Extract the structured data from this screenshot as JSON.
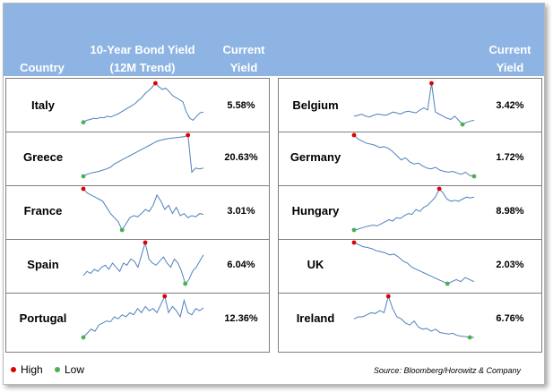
{
  "header": {
    "country": "Country",
    "yield_trend_line1": "10-Year Bond Yield",
    "yield_trend_line2": "(12M Trend)",
    "current_line1": "Current",
    "current_line2": "Yield",
    "right_current_line1": "Current",
    "right_current_line2": "Yield"
  },
  "legend": {
    "high": "High",
    "low": "Low"
  },
  "source": "Source: Bloomberg/Horowitz & Company",
  "colors": {
    "header_bg": "#8db4e2",
    "line": "#4f81bd",
    "high_marker": "#e00000",
    "low_marker": "#4caf50"
  },
  "chart_data": {
    "type": "sparkline-table",
    "columns": [
      "Country",
      "10-Year Bond Yield (12M Trend)",
      "Current Yield"
    ],
    "rows": [
      {
        "country": "Italy",
        "current_yield": "5.58%",
        "trend": [
          0.05,
          0.1,
          0.12,
          0.15,
          0.14,
          0.17,
          0.16,
          0.2,
          0.18,
          0.22,
          0.25,
          0.3,
          0.35,
          0.4,
          0.45,
          0.5,
          0.58,
          0.65,
          0.75,
          0.82,
          0.9,
          1.0,
          0.92,
          0.85,
          0.88,
          0.8,
          0.7,
          0.65,
          0.6,
          0.55,
          0.3,
          0.15,
          0.1,
          0.2,
          0.28,
          0.3
        ]
      },
      {
        "country": "Greece",
        "current_yield": "20.63%",
        "trend": [
          0.0,
          0.05,
          0.08,
          0.1,
          0.12,
          0.15,
          0.18,
          0.22,
          0.3,
          0.35,
          0.4,
          0.45,
          0.5,
          0.55,
          0.6,
          0.65,
          0.7,
          0.75,
          0.8,
          0.85,
          0.88,
          0.9,
          0.92,
          0.93,
          0.94,
          0.95,
          0.96,
          1.0,
          0.1,
          0.2,
          0.18,
          0.2
        ]
      },
      {
        "country": "France",
        "current_yield": "3.01%",
        "trend": [
          1.0,
          0.9,
          0.85,
          0.8,
          0.75,
          0.7,
          0.55,
          0.4,
          0.3,
          0.2,
          0.0,
          0.15,
          0.3,
          0.35,
          0.32,
          0.4,
          0.5,
          0.45,
          0.6,
          0.85,
          0.7,
          0.5,
          0.6,
          0.4,
          0.55,
          0.35,
          0.4,
          0.3,
          0.35,
          0.32,
          0.4,
          0.38
        ]
      },
      {
        "country": "Spain",
        "current_yield": "6.04%",
        "trend": [
          0.2,
          0.3,
          0.25,
          0.35,
          0.3,
          0.4,
          0.45,
          0.35,
          0.5,
          0.4,
          0.3,
          0.5,
          0.45,
          0.6,
          0.55,
          0.4,
          0.7,
          1.0,
          0.6,
          0.5,
          0.45,
          0.55,
          0.65,
          0.5,
          0.4,
          0.6,
          0.5,
          0.3,
          0.0,
          0.1,
          0.3,
          0.4,
          0.55,
          0.7
        ]
      },
      {
        "country": "Portugal",
        "current_yield": "12.36%",
        "trend": [
          0.0,
          0.1,
          0.2,
          0.15,
          0.3,
          0.35,
          0.4,
          0.38,
          0.5,
          0.45,
          0.55,
          0.5,
          0.6,
          0.55,
          0.7,
          0.6,
          0.75,
          0.65,
          0.7,
          0.6,
          0.8,
          1.0,
          0.6,
          0.75,
          0.65,
          0.5,
          0.9,
          0.6,
          0.55,
          0.7,
          0.65,
          0.72
        ]
      },
      {
        "country": "Belgium",
        "current_yield": "3.42%",
        "trend": [
          0.2,
          0.22,
          0.25,
          0.2,
          0.18,
          0.22,
          0.25,
          0.24,
          0.22,
          0.25,
          0.3,
          0.28,
          0.25,
          0.3,
          0.32,
          0.3,
          0.28,
          0.35,
          0.4,
          0.35,
          1.0,
          0.3,
          0.25,
          0.2,
          0.15,
          0.12,
          0.2,
          0.1,
          0.0,
          0.05,
          0.08,
          0.1
        ]
      },
      {
        "country": "Germany",
        "current_yield": "1.72%",
        "trend": [
          1.0,
          0.9,
          0.85,
          0.8,
          0.78,
          0.75,
          0.7,
          0.72,
          0.68,
          0.6,
          0.5,
          0.4,
          0.45,
          0.35,
          0.3,
          0.32,
          0.25,
          0.2,
          0.18,
          0.22,
          0.15,
          0.12,
          0.1,
          0.12,
          0.08,
          0.05,
          0.1,
          0.02,
          0.0
        ]
      },
      {
        "country": "Hungary",
        "current_yield": "8.98%",
        "trend": [
          0.0,
          0.02,
          0.05,
          0.08,
          0.1,
          0.12,
          0.1,
          0.15,
          0.2,
          0.25,
          0.22,
          0.3,
          0.28,
          0.35,
          0.4,
          0.38,
          0.5,
          0.45,
          0.55,
          0.6,
          0.7,
          0.8,
          1.0,
          0.9,
          0.75,
          0.7,
          0.72,
          0.7,
          0.75,
          0.8,
          0.78,
          0.8
        ]
      },
      {
        "country": "UK",
        "current_yield": "2.03%",
        "trend": [
          1.0,
          0.95,
          0.9,
          0.88,
          0.85,
          0.8,
          0.78,
          0.75,
          0.7,
          0.72,
          0.65,
          0.55,
          0.5,
          0.4,
          0.35,
          0.3,
          0.25,
          0.2,
          0.15,
          0.1,
          0.05,
          0.0,
          0.05,
          0.1,
          0.05,
          0.15,
          0.1,
          0.05
        ]
      },
      {
        "country": "Ireland",
        "current_yield": "6.76%",
        "trend": [
          0.45,
          0.5,
          0.5,
          0.55,
          0.6,
          0.58,
          0.65,
          0.6,
          1.0,
          0.7,
          0.5,
          0.45,
          0.35,
          0.3,
          0.4,
          0.25,
          0.2,
          0.22,
          0.15,
          0.2,
          0.12,
          0.1,
          0.08,
          0.1,
          0.05,
          0.03,
          0.02,
          0.0,
          0.0
        ]
      }
    ]
  }
}
